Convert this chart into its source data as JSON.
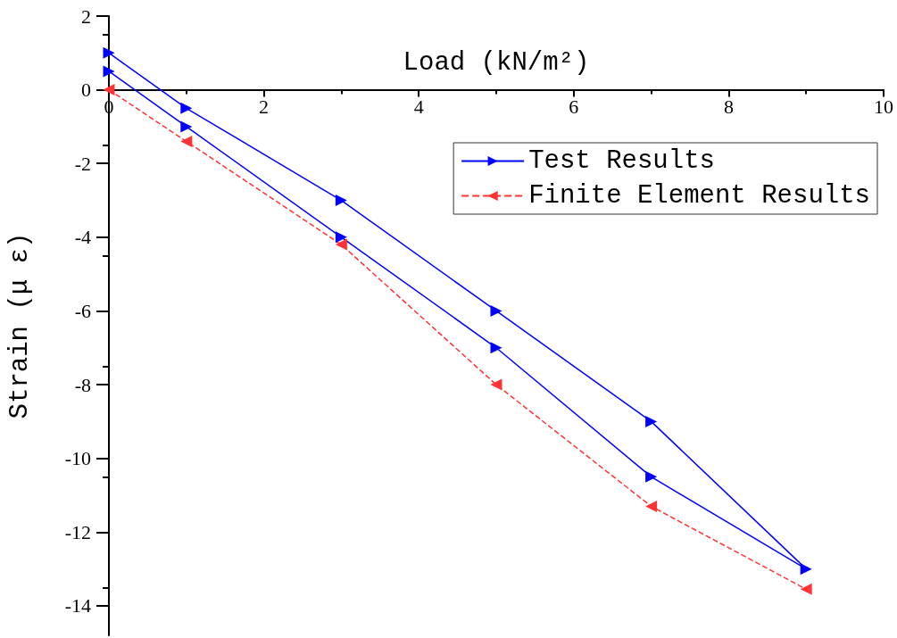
{
  "chart_data": {
    "type": "line",
    "xlabel": "Load (kN/m²)",
    "ylabel": "Strain (μ ε)",
    "xlim": [
      0,
      10
    ],
    "xticks": [
      0,
      2,
      4,
      6,
      8,
      10
    ],
    "ylim": [
      -14.8,
      2
    ],
    "yticks": [
      -14,
      -12,
      -10,
      -8,
      -6,
      -4,
      -2,
      0,
      2
    ],
    "legend": "top right",
    "marker": "triangle",
    "series": [
      {
        "name": "Test Results",
        "color": "#0000ff",
        "line_style": "solid",
        "x": [
          0,
          1,
          3,
          5,
          7,
          9,
          7,
          5,
          3,
          1,
          0
        ],
        "values": [
          1,
          -0.5,
          -3,
          -6,
          -9,
          -13,
          -10.5,
          -7,
          -4,
          -1,
          0.5
        ]
      },
      {
        "name": "Finite Element Results",
        "color": "#ff3333",
        "line_style": "dashed",
        "x": [
          0,
          1,
          3,
          5,
          7,
          9
        ],
        "values": [
          0,
          -1.4,
          -4.2,
          -8,
          -11.3,
          -13.55
        ]
      }
    ]
  }
}
